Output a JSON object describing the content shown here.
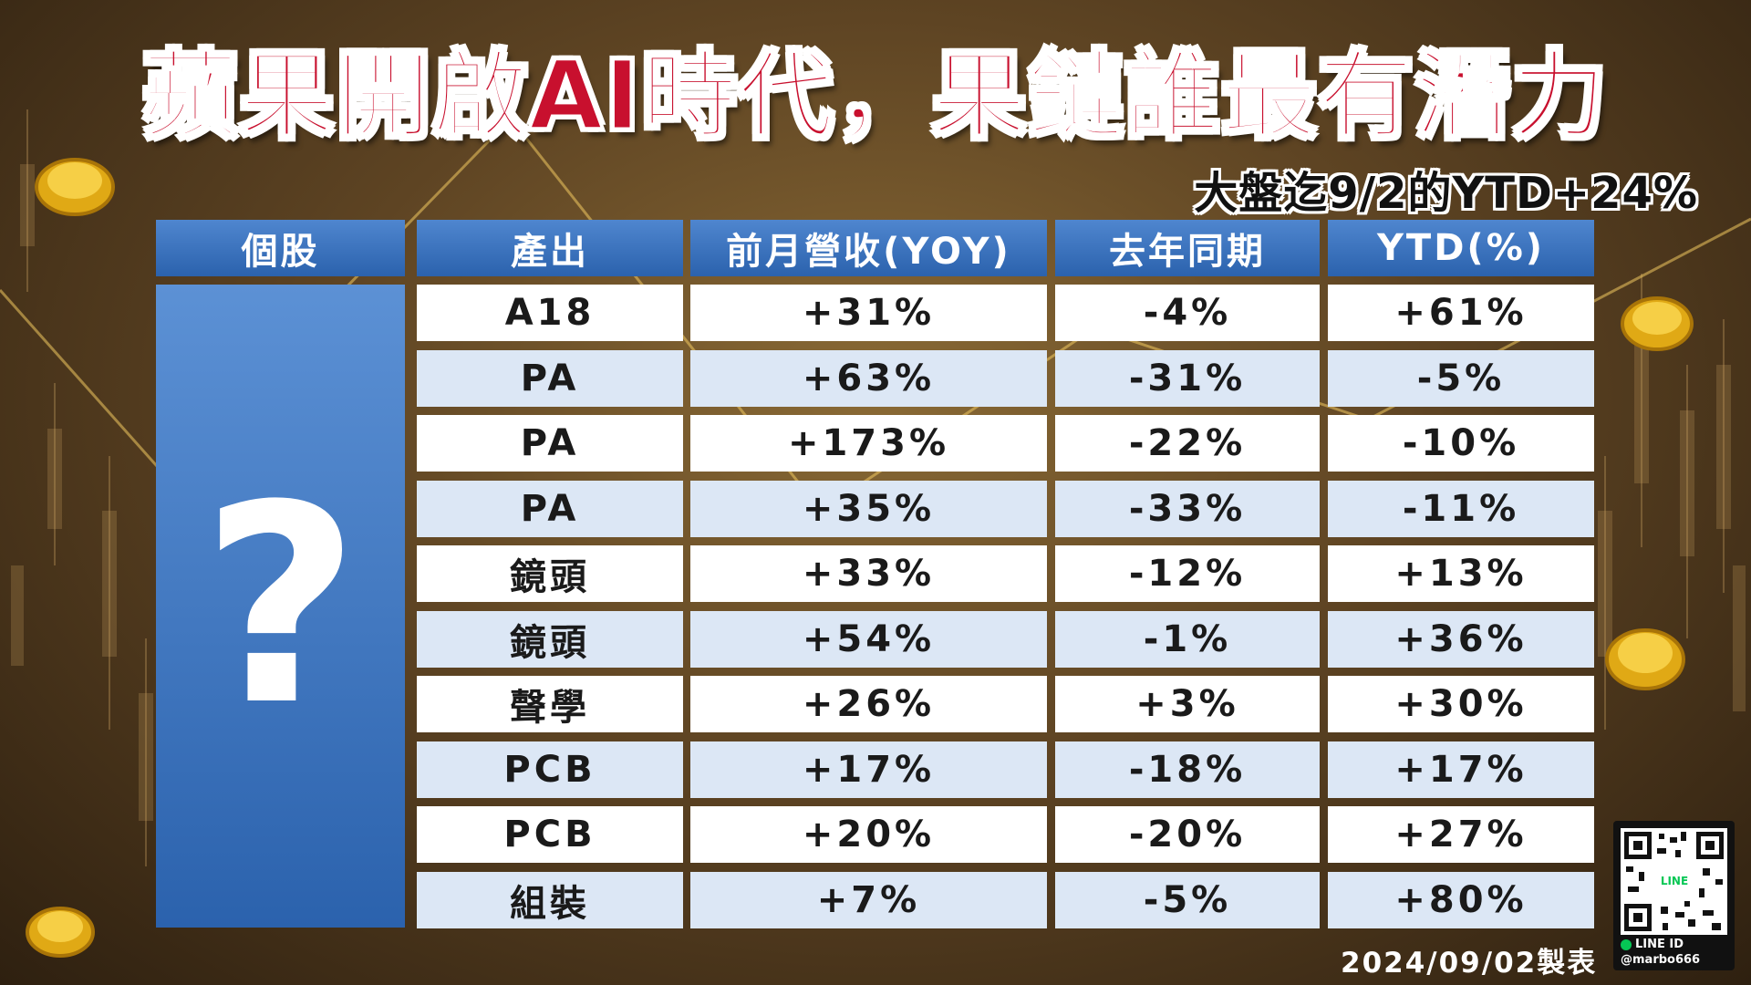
{
  "title": "蘋果開啟AI時代，果鏈誰最有潛力",
  "subtitle": "大盤迄9/2的YTD+24%",
  "table": {
    "headers": [
      "個股",
      "產出",
      "前月營收(YOY)",
      "去年同期",
      "YTD(%)"
    ],
    "stock_placeholder": "?",
    "rows": [
      [
        "A18",
        "+31%",
        "-4%",
        "+61%"
      ],
      [
        "PA",
        "+63%",
        "-31%",
        "-5%"
      ],
      [
        "PA",
        "+173%",
        "-22%",
        "-10%"
      ],
      [
        "PA",
        "+35%",
        "-33%",
        "-11%"
      ],
      [
        "鏡頭",
        "+33%",
        "-12%",
        "+13%"
      ],
      [
        "鏡頭",
        "+54%",
        "-1%",
        "+36%"
      ],
      [
        "聲學",
        "+26%",
        "+3%",
        "+30%"
      ],
      [
        "PCB",
        "+17%",
        "-18%",
        "+17%"
      ],
      [
        "PCB",
        "+20%",
        "-20%",
        "+27%"
      ],
      [
        "組裝",
        "+7%",
        "-5%",
        "+80%"
      ]
    ]
  },
  "footer": {
    "date": "2024/09/02製表",
    "qr_badge": "LINE",
    "line_id_label": "LINE ID",
    "line_id": "@marbo666"
  },
  "colors": {
    "title_red": "#c8102e",
    "header_blue": "#2b62ad",
    "row_alt": "#dce7f5",
    "line_green": "#06c755"
  },
  "icons": [
    "gold-coin-icon",
    "qr-code-icon",
    "line-icon"
  ]
}
